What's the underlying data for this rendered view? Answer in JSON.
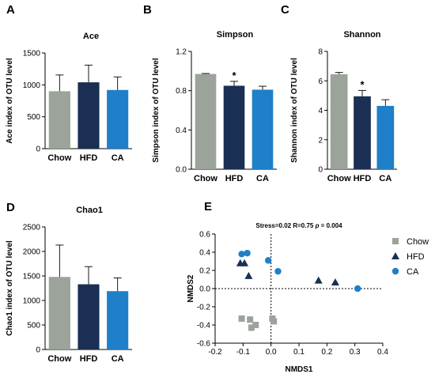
{
  "colors": {
    "Chow": "#9ba39a",
    "HFD": "#1a2f53",
    "CA": "#1f7fc8"
  },
  "chart_data": [
    {
      "id": "A",
      "type": "bar",
      "panel_label": "A",
      "title": "Ace",
      "ylabel": "Ace index of OTU level",
      "categories": [
        "Chow",
        "HFD",
        "CA"
      ],
      "values": [
        900,
        1040,
        920
      ],
      "errors": [
        255,
        270,
        205
      ],
      "ylim": [
        0,
        1500
      ],
      "yticks": [
        0,
        500,
        1000,
        1500
      ],
      "yticklabels": [
        "0",
        "500",
        "1000",
        "1500"
      ],
      "significance": [
        "",
        "",
        ""
      ]
    },
    {
      "id": "B",
      "type": "bar",
      "panel_label": "B",
      "title": "Simpson",
      "ylabel": "Simpson index of OTU level",
      "categories": [
        "Chow",
        "HFD",
        "CA"
      ],
      "values": [
        0.97,
        0.85,
        0.81
      ],
      "errors": [
        0.005,
        0.045,
        0.035
      ],
      "ylim": [
        0,
        1.2
      ],
      "yticks": [
        0,
        0.4,
        0.8,
        1.2
      ],
      "yticklabels": [
        "0.0",
        "0.4",
        "0.8",
        "1.2"
      ],
      "significance": [
        "",
        "*",
        ""
      ]
    },
    {
      "id": "C",
      "type": "bar",
      "panel_label": "C",
      "title": "Shannon",
      "ylabel": "Shannon index of OTU level",
      "categories": [
        "Chow",
        "HFD",
        "CA"
      ],
      "values": [
        6.45,
        4.95,
        4.3
      ],
      "errors": [
        0.12,
        0.4,
        0.42
      ],
      "ylim": [
        0,
        8
      ],
      "yticks": [
        0,
        2,
        4,
        6,
        8
      ],
      "yticklabels": [
        "0",
        "2",
        "4",
        "6",
        "8"
      ],
      "significance": [
        "",
        "*",
        ""
      ]
    },
    {
      "id": "D",
      "type": "bar",
      "panel_label": "D",
      "title": "Chao1",
      "ylabel": "Chao1 index of OTU level",
      "categories": [
        "Chow",
        "HFD",
        "CA"
      ],
      "values": [
        1480,
        1330,
        1190
      ],
      "errors": [
        650,
        360,
        270
      ],
      "ylim": [
        0,
        2500
      ],
      "yticks": [
        0,
        500,
        1000,
        1500,
        2000,
        2500
      ],
      "yticklabels": [
        "0",
        "500",
        "1000",
        "1500",
        "2000",
        "2500"
      ],
      "significance": [
        "",
        "",
        ""
      ]
    },
    {
      "id": "E",
      "type": "scatter",
      "panel_label": "E",
      "stress_prefix": "Stress=0.02 R=0.75 ",
      "stress_p": "p",
      "stress_suffix": " = 0.004",
      "xlabel": "NMDS1",
      "ylabel": "NMDS2",
      "xlim": [
        -0.2,
        0.4
      ],
      "ylim": [
        -0.6,
        0.6
      ],
      "xticks": [
        -0.2,
        -0.1,
        0.0,
        0.1,
        0.2,
        0.3,
        0.4
      ],
      "xticklabels": [
        "-0.2",
        "-0.1",
        "0.0",
        "0.1",
        "0.2",
        "0.3",
        "0.4"
      ],
      "yticks": [
        -0.6,
        -0.4,
        -0.2,
        0.0,
        0.2,
        0.4,
        0.6
      ],
      "yticklabels": [
        "-0.6",
        "-0.4",
        "-0.2",
        "0.0",
        "0.2",
        "0.4",
        "0.6"
      ],
      "series": [
        {
          "name": "Chow",
          "marker": "square",
          "points": [
            [
              -0.105,
              -0.33
            ],
            [
              -0.075,
              -0.34
            ],
            [
              -0.07,
              -0.43
            ],
            [
              -0.055,
              -0.4
            ],
            [
              0.005,
              -0.33
            ],
            [
              0.01,
              -0.36
            ]
          ]
        },
        {
          "name": "HFD",
          "marker": "triangle",
          "points": [
            [
              -0.11,
              0.28
            ],
            [
              -0.095,
              0.28
            ],
            [
              -0.08,
              0.14
            ],
            [
              0.17,
              0.09
            ],
            [
              0.23,
              0.07
            ]
          ]
        },
        {
          "name": "CA",
          "marker": "circle",
          "points": [
            [
              -0.105,
              0.38
            ],
            [
              -0.085,
              0.39
            ],
            [
              -0.01,
              0.31
            ],
            [
              0.025,
              0.19
            ],
            [
              0.31,
              0.0
            ]
          ]
        }
      ],
      "legend_position": "right"
    }
  ]
}
